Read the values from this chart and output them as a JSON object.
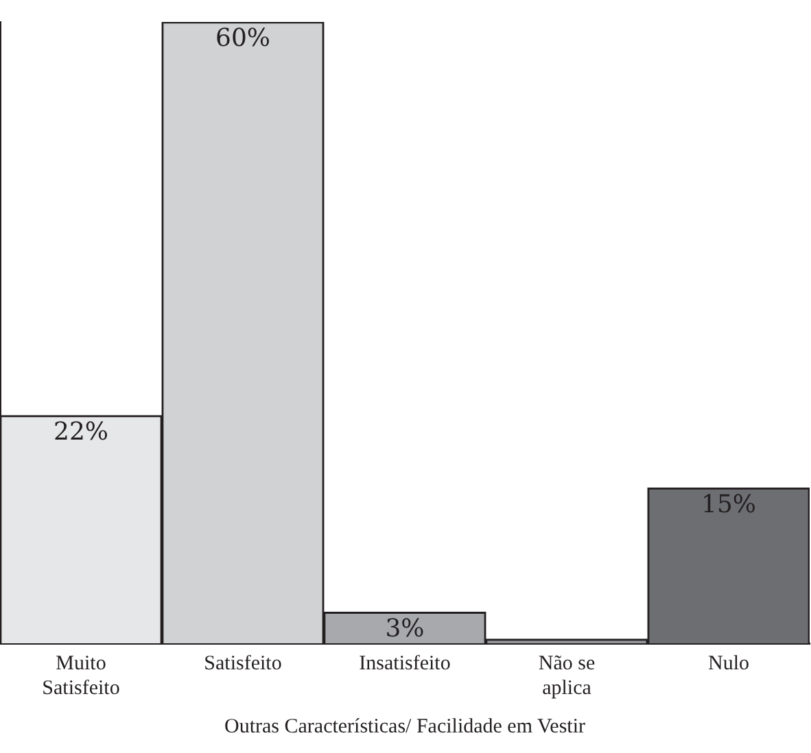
{
  "chart_data": {
    "type": "bar",
    "xlabel": "Outras Características/ Facilidade em Vestir",
    "categories": [
      "Muito Satisfeito",
      "Satisfeito",
      "Insatisfeito",
      "Não se aplica",
      "Nulo"
    ],
    "values": [
      22,
      60,
      3,
      0.4,
      15
    ],
    "colors": [
      "#e6e7e8",
      "#d1d2d4",
      "#a7a9ac",
      "#939598",
      "#6d6e71"
    ],
    "value_labels": [
      "22%",
      "60%",
      "3%",
      null,
      "15%"
    ],
    "ylim": [
      0,
      60
    ],
    "tick_labels": "x",
    "grid": false,
    "legend": false
  }
}
